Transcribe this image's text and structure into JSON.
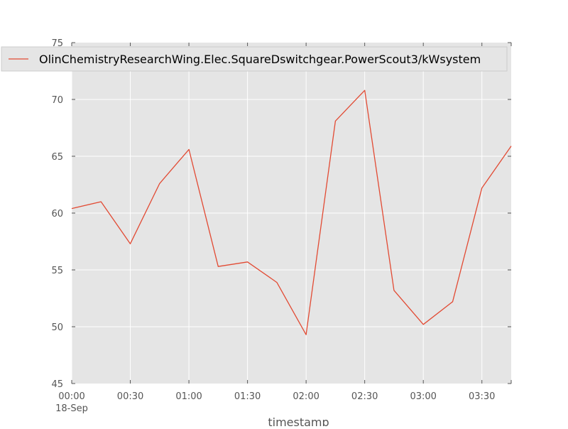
{
  "chart_data": {
    "type": "line",
    "xlabel": "timestamp",
    "x": [
      "00:00",
      "00:15",
      "00:30",
      "00:45",
      "01:00",
      "01:15",
      "01:30",
      "01:45",
      "02:00",
      "02:15",
      "02:30",
      "02:45",
      "03:00",
      "03:15",
      "03:30",
      "03:45"
    ],
    "x_ticks": [
      "00:00",
      "00:30",
      "01:00",
      "01:30",
      "02:00",
      "02:30",
      "03:00",
      "03:30"
    ],
    "x_date_label": "18-Sep",
    "y_ticks": [
      45,
      50,
      55,
      60,
      65,
      70,
      75
    ],
    "ylim": [
      45,
      75
    ],
    "x_range_minutes": [
      0,
      225
    ],
    "grid": true,
    "legend_position": "top-left",
    "series": [
      {
        "name": "OlinChemistryResearchWing.Elec.SquareDswitchgear.PowerScout3/kWsystem",
        "color": "#e24a33",
        "values": [
          60.4,
          61.0,
          57.3,
          62.6,
          65.6,
          55.3,
          55.7,
          53.9,
          49.3,
          68.1,
          70.8,
          53.2,
          50.2,
          52.2,
          62.2,
          65.9
        ]
      }
    ],
    "style": {
      "background": "#e5e5e5",
      "grid_color": "#ffffff",
      "tick_color": "#555555"
    }
  }
}
